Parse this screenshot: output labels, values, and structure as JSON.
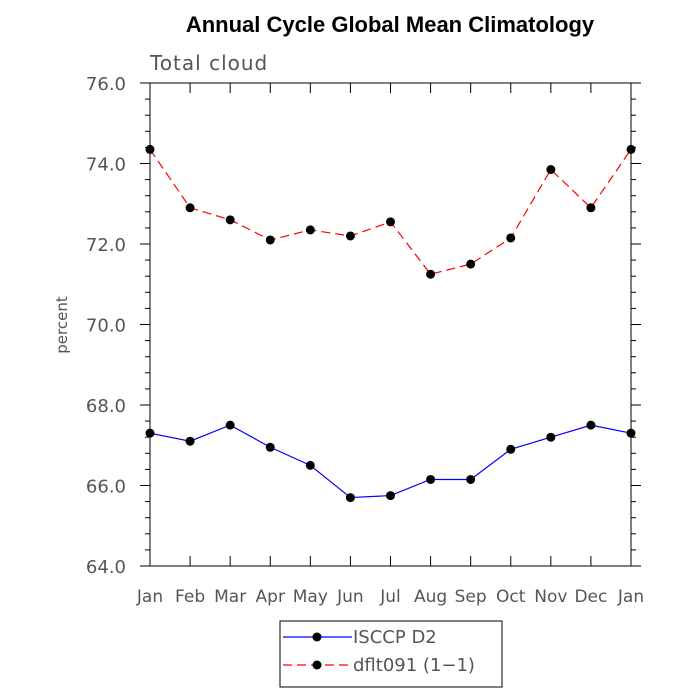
{
  "chart_data": {
    "type": "line",
    "title": "Annual Cycle Global Mean Climatology",
    "subtitle": "Total cloud",
    "ylabel": "percent",
    "xlabel": "",
    "categories": [
      "Jan",
      "Feb",
      "Mar",
      "Apr",
      "May",
      "Jun",
      "Jul",
      "Aug",
      "Sep",
      "Oct",
      "Nov",
      "Dec",
      "Jan"
    ],
    "ylim": [
      64.0,
      76.0
    ],
    "yticks": [
      64.0,
      66.0,
      68.0,
      70.0,
      72.0,
      74.0,
      76.0
    ],
    "ytick_labels": [
      "64.0",
      "66.0",
      "68.0",
      "70.0",
      "72.0",
      "74.0",
      "76.0"
    ],
    "grid": false,
    "legend_position": "bottom-center",
    "series": [
      {
        "name": "ISCCP D2",
        "color": "#0000ff",
        "dash": "solid",
        "values": [
          67.3,
          67.1,
          67.5,
          66.95,
          66.5,
          65.7,
          65.75,
          66.15,
          66.15,
          66.9,
          67.2,
          67.5,
          67.3
        ]
      },
      {
        "name": "dflt091 (1−1)",
        "color": "#ff0000",
        "dash": "dashed",
        "values": [
          74.35,
          72.9,
          72.6,
          72.1,
          72.35,
          72.2,
          72.55,
          71.25,
          71.5,
          72.15,
          73.85,
          72.9,
          74.35
        ]
      }
    ]
  }
}
